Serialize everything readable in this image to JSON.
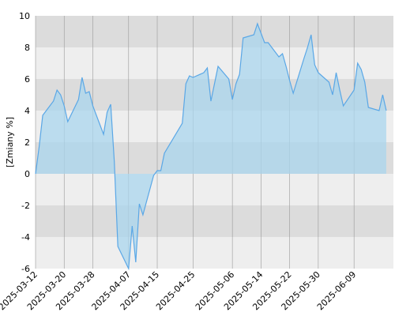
{
  "chart_data": {
    "type": "area",
    "ylabel": "[Zmiany %]",
    "ylim": [
      -6,
      10
    ],
    "yticks": [
      -6,
      -4,
      -2,
      0,
      2,
      4,
      6,
      8,
      10
    ],
    "xlim": [
      "2025-03-12",
      "2025-06-20"
    ],
    "xticks": [
      "2025-03-12",
      "2025-03-20",
      "2025-03-28",
      "2025-04-07",
      "2025-04-15",
      "2025-04-25",
      "2025-05-06",
      "2025-05-14",
      "2025-05-22",
      "2025-05-30",
      "2025-06-09"
    ],
    "grid": true,
    "colors": {
      "line": "#5aa7e6",
      "fill": "#a9d5ee",
      "band_dark": "#dcdcdc",
      "band_light": "#eeeeee",
      "grid": "#999999"
    },
    "series": [
      {
        "x": [
          "2025-03-12",
          "2025-03-13",
          "2025-03-14",
          "2025-03-17",
          "2025-03-18",
          "2025-03-19",
          "2025-03-20",
          "2025-03-21",
          "2025-03-24",
          "2025-03-25",
          "2025-03-26",
          "2025-03-27",
          "2025-03-28",
          "2025-03-31",
          "2025-04-01",
          "2025-04-02",
          "2025-04-03",
          "2025-04-04",
          "2025-04-07",
          "2025-04-08",
          "2025-04-09",
          "2025-04-10",
          "2025-04-11",
          "2025-04-14",
          "2025-04-15",
          "2025-04-16",
          "2025-04-17",
          "2025-04-22",
          "2025-04-23",
          "2025-04-24",
          "2025-04-25",
          "2025-04-28",
          "2025-04-29",
          "2025-04-30",
          "2025-05-02",
          "2025-05-05",
          "2025-05-06",
          "2025-05-07",
          "2025-05-08",
          "2025-05-09",
          "2025-05-12",
          "2025-05-13",
          "2025-05-14",
          "2025-05-15",
          "2025-05-16",
          "2025-05-19",
          "2025-05-20",
          "2025-05-21",
          "2025-05-22",
          "2025-05-23",
          "2025-05-26",
          "2025-05-27",
          "2025-05-28",
          "2025-05-29",
          "2025-05-30",
          "2025-06-02",
          "2025-06-03",
          "2025-06-04",
          "2025-06-05",
          "2025-06-06",
          "2025-06-09",
          "2025-06-10",
          "2025-06-11",
          "2025-06-12",
          "2025-06-13",
          "2025-06-16",
          "2025-06-17",
          "2025-06-18"
        ],
        "y": [
          0.0,
          1.7,
          3.7,
          4.6,
          5.3,
          5.0,
          4.3,
          3.3,
          4.7,
          6.1,
          5.1,
          5.2,
          4.3,
          2.5,
          3.9,
          4.4,
          0.8,
          -4.6,
          -6.0,
          -3.3,
          -5.6,
          -1.9,
          -2.6,
          -0.1,
          0.2,
          0.2,
          1.3,
          3.2,
          5.7,
          6.2,
          6.1,
          6.4,
          6.7,
          4.6,
          6.8,
          6.0,
          4.7,
          5.7,
          6.3,
          8.6,
          8.8,
          9.5,
          8.9,
          8.3,
          8.3,
          7.4,
          7.6,
          6.8,
          5.9,
          5.1,
          7.3,
          8.0,
          8.8,
          6.9,
          6.4,
          5.8,
          5.0,
          6.4,
          5.3,
          4.3,
          5.3,
          7.0,
          6.6,
          5.8,
          4.2,
          4.0,
          5.0,
          4.0
        ]
      }
    ]
  }
}
